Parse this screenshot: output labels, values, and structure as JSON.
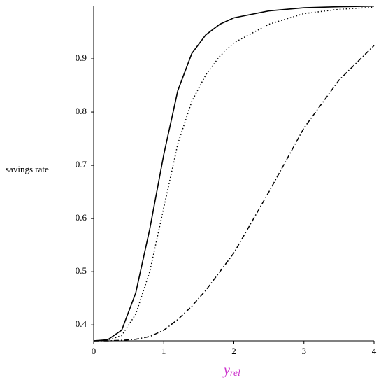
{
  "chart_data": {
    "type": "line",
    "ylabel": "savings rate",
    "xlabel": "y",
    "xlabel_sub": "rel",
    "xlabel_color": "#cc33cc",
    "x": [
      0,
      0.2,
      0.4,
      0.6,
      0.8,
      1.0,
      1.2,
      1.4,
      1.6,
      1.8,
      2.0,
      2.5,
      3.0,
      3.5,
      4.0
    ],
    "series": [
      {
        "color": "#000000",
        "dash": "solid",
        "values": [
          0.37,
          0.372,
          0.39,
          0.46,
          0.58,
          0.72,
          0.84,
          0.91,
          0.945,
          0.965,
          0.977,
          0.99,
          0.996,
          0.998,
          0.999
        ]
      },
      {
        "color": "#000000",
        "dash": "dotted",
        "values": [
          0.37,
          0.371,
          0.38,
          0.42,
          0.5,
          0.62,
          0.74,
          0.82,
          0.87,
          0.905,
          0.93,
          0.965,
          0.985,
          0.993,
          0.997
        ]
      },
      {
        "color": "#000000",
        "dash": "dashdot",
        "values": [
          0.37,
          0.37,
          0.371,
          0.373,
          0.378,
          0.39,
          0.41,
          0.435,
          0.465,
          0.5,
          0.535,
          0.65,
          0.77,
          0.86,
          0.925
        ]
      }
    ],
    "xlim": [
      0,
      4
    ],
    "xticks": [
      0,
      1,
      2,
      3,
      4
    ],
    "ylim": [
      0.37,
      1.0
    ],
    "yticks": [
      0.4,
      0.5,
      0.6,
      0.7,
      0.8,
      0.9
    ],
    "grid": false
  }
}
